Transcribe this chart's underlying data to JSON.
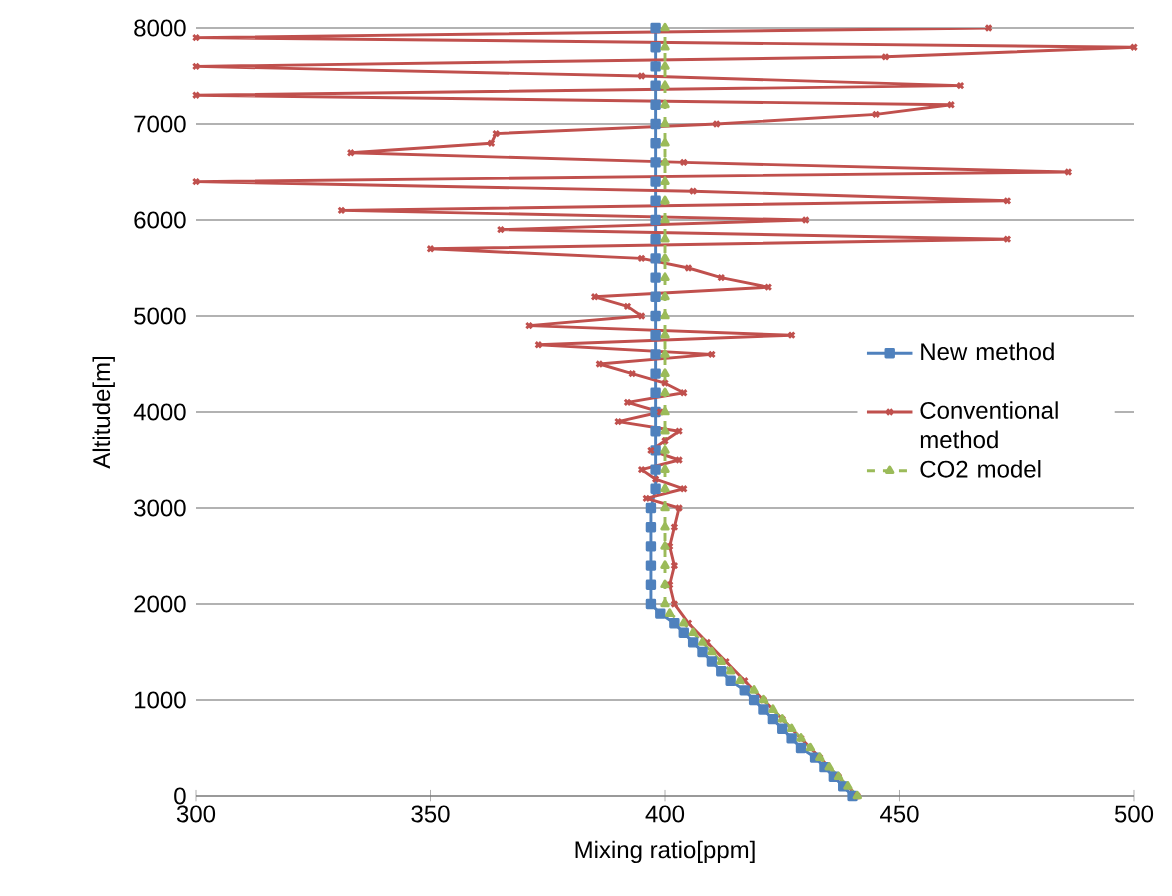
{
  "chart_data": {
    "type": "line",
    "xlabel": "Mixing ratio[ppm]",
    "ylabel": "Altitude[m]",
    "xlim": [
      300,
      500
    ],
    "xticks": [
      300,
      350,
      400,
      450,
      500
    ],
    "ylim": [
      0,
      8000
    ],
    "yticks": [
      0,
      1000,
      2000,
      3000,
      4000,
      5000,
      6000,
      7000,
      8000
    ],
    "grid": "y",
    "legend": "right",
    "series": [
      {
        "name": "New method",
        "color": "#4f81bd",
        "marker": "square",
        "line_style": "solid",
        "x": [
          440,
          438,
          436,
          434,
          432,
          429,
          427,
          425,
          423,
          421,
          419,
          417,
          414,
          412,
          410,
          408,
          406,
          404,
          402,
          399,
          397,
          397,
          397,
          397,
          397,
          397,
          398,
          398,
          398,
          398,
          398,
          398,
          398,
          398,
          398,
          398,
          398,
          398,
          398,
          398,
          398,
          398,
          398,
          398,
          398,
          398,
          398,
          398,
          398,
          398,
          398
        ],
        "values": [
          0,
          100,
          200,
          300,
          400,
          500,
          600,
          700,
          800,
          900,
          1000,
          1100,
          1200,
          1300,
          1400,
          1500,
          1600,
          1700,
          1800,
          1900,
          2000,
          2200,
          2400,
          2600,
          2800,
          3000,
          3200,
          3400,
          3600,
          3800,
          4000,
          4200,
          4400,
          4600,
          4800,
          5000,
          5200,
          5400,
          5600,
          5800,
          6000,
          6200,
          6400,
          6600,
          6800,
          7000,
          7200,
          7400,
          7600,
          7800,
          8000
        ]
      },
      {
        "name": "Conventional method",
        "color": "#c0504d",
        "marker": "cross",
        "line_style": "solid",
        "x": [
          441,
          437,
          433,
          429,
          425,
          421,
          417,
          413,
          409,
          405,
          402,
          401,
          402,
          401,
          402,
          403,
          396,
          404,
          398,
          395,
          403,
          397,
          400,
          403,
          390,
          399,
          392,
          404,
          400,
          393,
          386,
          410,
          373,
          427,
          371,
          395,
          392,
          385,
          422,
          412,
          405,
          395,
          350,
          473,
          365,
          430,
          331,
          473,
          406,
          300,
          486,
          404,
          333,
          363,
          364,
          411,
          445,
          461,
          300,
          463,
          395,
          300,
          447,
          500,
          300,
          469
        ],
        "values": [
          0,
          200,
          400,
          600,
          800,
          1000,
          1200,
          1400,
          1600,
          1800,
          2000,
          2200,
          2400,
          2600,
          2800,
          3000,
          3100,
          3200,
          3300,
          3400,
          3500,
          3600,
          3700,
          3800,
          3900,
          4000,
          4100,
          4200,
          4300,
          4400,
          4500,
          4600,
          4700,
          4800,
          4900,
          5000,
          5100,
          5200,
          5300,
          5400,
          5500,
          5600,
          5700,
          5800,
          5900,
          6000,
          6100,
          6200,
          6300,
          6400,
          6500,
          6600,
          6700,
          6800,
          6900,
          7000,
          7100,
          7200,
          7300,
          7400,
          7500,
          7600,
          7700,
          7800,
          7900,
          8000
        ]
      },
      {
        "name": "CO2 model",
        "color": "#9bbb59",
        "marker": "triangle",
        "line_style": "dashed",
        "x": [
          441,
          439,
          437,
          435,
          433,
          431,
          429,
          427,
          425,
          423,
          421,
          419,
          416,
          414,
          412,
          410,
          408,
          406,
          404,
          401,
          400,
          400,
          400,
          400,
          400,
          400,
          400,
          400,
          400,
          400,
          400,
          400,
          400,
          400,
          400,
          400,
          400,
          400,
          400,
          400,
          400,
          400,
          400,
          400,
          400,
          400,
          400,
          400,
          400,
          400,
          400
        ],
        "values": [
          0,
          100,
          200,
          300,
          400,
          500,
          600,
          700,
          800,
          900,
          1000,
          1100,
          1200,
          1300,
          1400,
          1500,
          1600,
          1700,
          1800,
          1900,
          2000,
          2200,
          2400,
          2600,
          2800,
          3000,
          3200,
          3400,
          3600,
          3800,
          4000,
          4200,
          4400,
          4600,
          4800,
          5000,
          5200,
          5400,
          5600,
          5800,
          6000,
          6200,
          6400,
          6600,
          6800,
          7000,
          7200,
          7400,
          7600,
          7800,
          8000
        ]
      }
    ]
  }
}
